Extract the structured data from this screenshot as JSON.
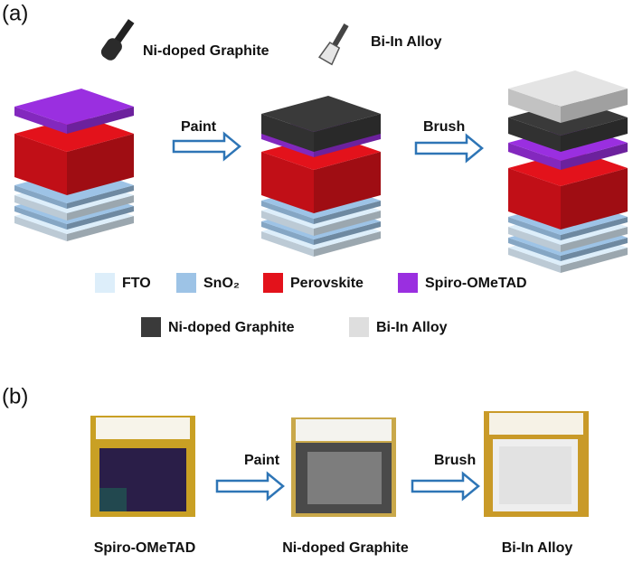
{
  "panel_a": {
    "label": "(a)",
    "tools": [
      "Ni-doped Graphite",
      "Bi-In Alloy"
    ],
    "steps": [
      "Paint",
      "Brush"
    ],
    "legend": [
      "FTO",
      "SnO₂",
      "Perovskite",
      "Spiro-OMeTAD",
      "Ni-doped Graphite",
      "Bi-In Alloy"
    ]
  },
  "panel_b": {
    "label": "(b)",
    "steps": [
      "Paint",
      "Brush"
    ],
    "captions": [
      "Spiro-OMeTAD",
      "Ni-doped Graphite",
      "Bi-In Alloy"
    ]
  }
}
